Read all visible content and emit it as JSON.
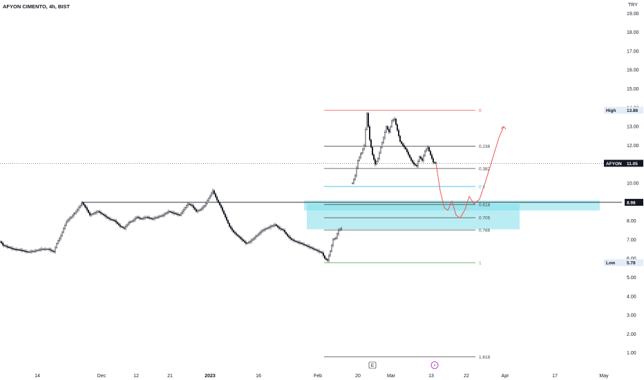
{
  "header": {
    "symbol_title": "AFYON CIMENTO, 4h, BIST"
  },
  "chart_data": {
    "type": "candlestick",
    "currency": "TRY",
    "y_axis": {
      "side": "right",
      "ylim": [
        0.4,
        20.0
      ],
      "ticks": [
        "1.00",
        "2.00",
        "3.00",
        "4.00",
        "5.00",
        "6.00",
        "7.00",
        "8.00",
        "10.00",
        "11.00",
        "12.00",
        "13.00",
        "14.00",
        "15.00",
        "16.00",
        "17.00",
        "18.00",
        "19.00"
      ]
    },
    "x_axis": {
      "ticks": [
        "14",
        "Dec",
        "12",
        "21",
        "2023",
        "16",
        "Feb",
        "20",
        "Mar",
        "13",
        "22",
        "Apr",
        "17",
        "May"
      ]
    },
    "price_path": [
      [
        0,
        6.9
      ],
      [
        5,
        6.7
      ],
      [
        12,
        6.6
      ],
      [
        20,
        6.5
      ],
      [
        30,
        6.45
      ],
      [
        40,
        6.35
      ],
      [
        50,
        6.4
      ],
      [
        60,
        6.5
      ],
      [
        70,
        6.5
      ],
      [
        78,
        6.35
      ],
      [
        82,
        6.8
      ],
      [
        88,
        7.2
      ],
      [
        92,
        7.6
      ],
      [
        97,
        8.0
      ],
      [
        103,
        8.2
      ],
      [
        108,
        8.4
      ],
      [
        112,
        8.6
      ],
      [
        116,
        8.8
      ],
      [
        119,
        8.95
      ],
      [
        124,
        8.7
      ],
      [
        130,
        8.3
      ],
      [
        136,
        8.4
      ],
      [
        142,
        8.5
      ],
      [
        150,
        8.3
      ],
      [
        158,
        8.1
      ],
      [
        166,
        8.0
      ],
      [
        174,
        7.7
      ],
      [
        180,
        7.6
      ],
      [
        186,
        7.9
      ],
      [
        192,
        8.0
      ],
      [
        198,
        8.2
      ],
      [
        204,
        8.1
      ],
      [
        212,
        8.2
      ],
      [
        220,
        8.1
      ],
      [
        228,
        8.2
      ],
      [
        236,
        8.3
      ],
      [
        244,
        8.5
      ],
      [
        252,
        8.4
      ],
      [
        260,
        8.3
      ],
      [
        266,
        8.6
      ],
      [
        272,
        8.9
      ],
      [
        278,
        8.8
      ],
      [
        284,
        8.5
      ],
      [
        290,
        8.6
      ],
      [
        296,
        8.8
      ],
      [
        302,
        9.2
      ],
      [
        308,
        9.6
      ],
      [
        314,
        9.1
      ],
      [
        320,
        8.7
      ],
      [
        326,
        8.2
      ],
      [
        332,
        7.7
      ],
      [
        338,
        7.4
      ],
      [
        344,
        7.2
      ],
      [
        350,
        7.0
      ],
      [
        356,
        6.8
      ],
      [
        362,
        6.9
      ],
      [
        368,
        7.1
      ],
      [
        374,
        7.3
      ],
      [
        380,
        7.5
      ],
      [
        386,
        7.6
      ],
      [
        392,
        7.7
      ],
      [
        398,
        7.8
      ],
      [
        404,
        7.6
      ],
      [
        410,
        7.5
      ],
      [
        416,
        7.2
      ],
      [
        422,
        7.0
      ],
      [
        428,
        6.9
      ],
      [
        436,
        6.8
      ],
      [
        442,
        6.7
      ],
      [
        448,
        6.6
      ],
      [
        454,
        6.5
      ],
      [
        460,
        6.4
      ],
      [
        466,
        6.3
      ],
      [
        470,
        6.0
      ],
      [
        474,
        5.9
      ],
      [
        478,
        6.4
      ],
      [
        482,
        7.0
      ],
      [
        486,
        7.1
      ],
      [
        490,
        7.5
      ],
      [
        494,
        7.6
      ]
    ],
    "price_path_2": [
      [
        510,
        10.0
      ],
      [
        514,
        10.4
      ],
      [
        518,
        11.2
      ],
      [
        523,
        11.6
      ],
      [
        527,
        12.0
      ],
      [
        531,
        13.7
      ],
      [
        535,
        12.3
      ],
      [
        539,
        11.5
      ],
      [
        543,
        11.0
      ],
      [
        547,
        11.3
      ],
      [
        551,
        11.9
      ],
      [
        555,
        12.4
      ],
      [
        559,
        13.0
      ],
      [
        563,
        12.7
      ],
      [
        567,
        13.3
      ],
      [
        571,
        13.4
      ],
      [
        575,
        12.8
      ],
      [
        579,
        12.2
      ],
      [
        583,
        12.0
      ],
      [
        587,
        11.8
      ],
      [
        591,
        11.5
      ],
      [
        595,
        11.2
      ],
      [
        599,
        11.0
      ],
      [
        603,
        10.9
      ],
      [
        607,
        11.4
      ],
      [
        611,
        11.2
      ],
      [
        615,
        11.7
      ],
      [
        619,
        11.9
      ],
      [
        623,
        11.5
      ],
      [
        627,
        11.1
      ],
      [
        631,
        11.05
      ]
    ],
    "current_price": {
      "symbol": "AFYON",
      "value": "11.05"
    },
    "high_marker": {
      "label": "High",
      "value": "13.86"
    },
    "low_marker": {
      "label": "Low",
      "value": "5.78"
    },
    "horizontal_line": {
      "value": "8.98"
    },
    "fibonacci": {
      "price_high": 13.86,
      "price_low": 5.78,
      "levels": [
        {
          "ratio": 0,
          "label": "0",
          "color": "#ef5350"
        },
        {
          "ratio": 0.236,
          "label": "0.236",
          "color": "#444444"
        },
        {
          "ratio": 0.382,
          "label": "0.382",
          "color": "#444444"
        },
        {
          "ratio": 0.5,
          "label": "0.5",
          "color": "#26c6da"
        },
        {
          "ratio": 0.618,
          "label": "0.618",
          "color": "#444444"
        },
        {
          "ratio": 0.705,
          "label": "0.705",
          "color": "#444444"
        },
        {
          "ratio": 0.786,
          "label": "0.786",
          "color": "#444444"
        },
        {
          "ratio": 1,
          "label": "1",
          "color": "#4caf50"
        },
        {
          "ratio": 1.618,
          "label": "1.618",
          "color": "#444444"
        }
      ]
    },
    "zones": [
      {
        "from": 8.55,
        "to": 9.08,
        "color": "#80deea"
      },
      {
        "from": 7.55,
        "to": 8.9,
        "color": "#80deea"
      }
    ],
    "projection": {
      "color": "#ef5350",
      "path": [
        [
          631,
          11.05
        ],
        [
          637,
          9.6
        ],
        [
          643,
          8.7
        ],
        [
          648,
          8.55
        ],
        [
          654,
          9.05
        ],
        [
          660,
          8.3
        ],
        [
          666,
          8.15
        ],
        [
          673,
          8.6
        ],
        [
          679,
          9.3
        ],
        [
          686,
          8.9
        ],
        [
          694,
          9.15
        ],
        [
          702,
          10.0
        ],
        [
          712,
          11.2
        ],
        [
          722,
          12.4
        ],
        [
          729,
          13.0
        ]
      ]
    },
    "event_markers": [
      {
        "label": "E"
      },
      {
        "label": "⚡"
      }
    ]
  }
}
